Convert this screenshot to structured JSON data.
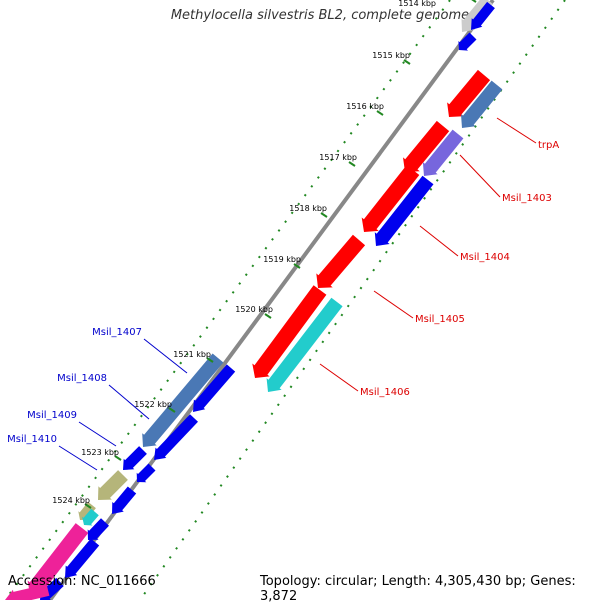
{
  "header": {
    "title": "Methylocella silvestris BL2, complete genome"
  },
  "footer": {
    "accession": "Accession: NC_011666",
    "summary": "Topology: circular; Length: 4,305,430 bp; Genes: 3,872"
  },
  "ticks": [
    "1514 kbp",
    "1515 kbp",
    "1516 kbp",
    "1517 kbp",
    "1518 kbp",
    "1519 kbp",
    "1520 kbp",
    "1521 kbp",
    "1522 kbp",
    "1523 kbp",
    "1524 kbp"
  ],
  "gene_labels": [
    {
      "id": "trpA",
      "text": "trpA",
      "color": "#dd0000"
    },
    {
      "id": "msil1403",
      "text": "Msil_1403",
      "color": "#dd0000"
    },
    {
      "id": "msil1404",
      "text": "Msil_1404",
      "color": "#dd0000"
    },
    {
      "id": "msil1405",
      "text": "Msil_1405",
      "color": "#dd0000"
    },
    {
      "id": "msil1406",
      "text": "Msil_1406",
      "color": "#dd0000"
    },
    {
      "id": "msil1407",
      "text": "Msil_1407",
      "color": "#0000cc"
    },
    {
      "id": "msil1408",
      "text": "Msil_1408",
      "color": "#0000cc"
    },
    {
      "id": "msil1409",
      "text": "Msil_1409",
      "color": "#0000cc"
    },
    {
      "id": "msil1410",
      "text": "Msil_1410",
      "color": "#0000cc"
    }
  ],
  "colors": {
    "backbone": "#888888",
    "red": "#ff0000",
    "blue": "#0000ee",
    "steel": "#4a78b5",
    "cyan": "#22cccc",
    "purple": "#7766dd",
    "olive": "#b5b57a",
    "magenta": "#ee2299",
    "gray": "#cccccc",
    "dot": "#228822"
  }
}
